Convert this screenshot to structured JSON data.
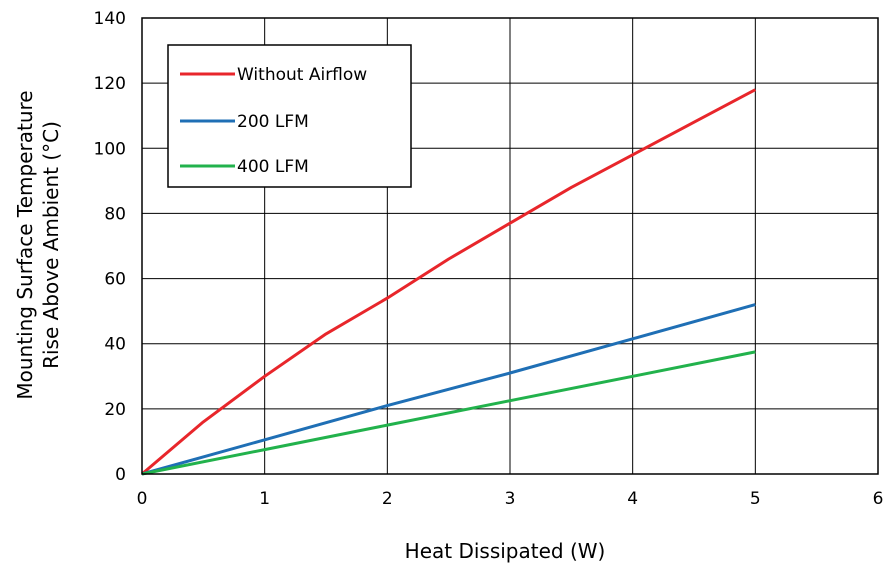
{
  "chart_data": {
    "type": "line",
    "xlabel": "Heat Dissipated (W)",
    "ylabel_lines": [
      "Mounting Surface Temperature",
      "Rise Above  Ambient (°C)"
    ],
    "xlim": [
      0,
      6
    ],
    "ylim": [
      0,
      140
    ],
    "xticks": [
      0,
      1,
      2,
      3,
      4,
      5,
      6
    ],
    "yticks": [
      0,
      20,
      40,
      60,
      80,
      100,
      120,
      140
    ],
    "grid": true,
    "legend_position": "top-left",
    "series": [
      {
        "name": "Without Airflow",
        "color": "#e8262b",
        "x": [
          0,
          0.5,
          1,
          1.5,
          2,
          2.5,
          3,
          3.5,
          4,
          4.5,
          5
        ],
        "y": [
          0,
          16,
          30,
          43,
          54,
          66,
          77,
          88,
          98,
          108,
          118
        ]
      },
      {
        "name": "200 LFM",
        "color": "#1f6fb5",
        "x": [
          0,
          1,
          2,
          3,
          4,
          5
        ],
        "y": [
          0,
          10.5,
          21,
          31,
          41.5,
          52
        ]
      },
      {
        "name": "400 LFM",
        "color": "#22b24c",
        "x": [
          0,
          1,
          2,
          3,
          4,
          5
        ],
        "y": [
          0,
          7.5,
          15,
          22.5,
          30,
          37.5
        ]
      }
    ]
  }
}
